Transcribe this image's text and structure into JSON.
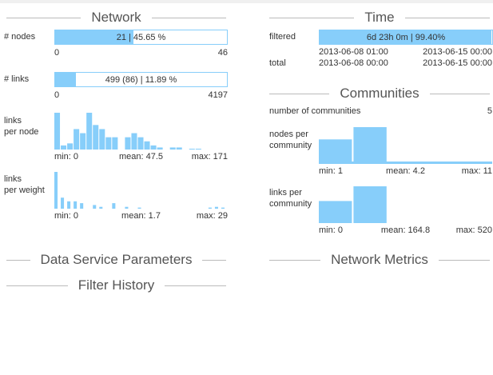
{
  "network": {
    "title": "Network",
    "nodes": {
      "label": "# nodes",
      "value": 21,
      "text": "21 | 45.65 %",
      "min": 0,
      "max": 46
    },
    "links": {
      "label": "# links",
      "value": 499,
      "text": "499 (86) | 11.89 %",
      "min": 0,
      "max": 4197
    },
    "links_per_node": {
      "label": [
        "links",
        "per node"
      ],
      "counts": [
        9,
        1,
        1.5,
        5,
        4,
        9,
        6,
        5,
        3,
        3,
        0,
        3,
        4,
        3,
        2,
        1,
        0.5,
        0,
        0.5,
        0.5,
        0,
        0.2,
        0.2,
        0,
        0,
        0,
        0
      ],
      "stats": [
        "min: 0",
        "mean: 47.5",
        "max: 171"
      ]
    },
    "links_per_weight": {
      "label": [
        "links",
        "per weight"
      ],
      "counts": [
        10,
        3,
        2,
        2,
        1.5,
        0,
        1,
        0.5,
        0,
        1.5,
        0,
        0.5,
        0,
        0.3,
        0,
        0,
        0,
        0,
        0,
        0,
        0,
        0,
        0,
        0,
        0.3,
        0.5,
        0.3
      ],
      "stats": [
        "min: 0",
        "mean: 1.7",
        "max: 29"
      ]
    }
  },
  "time": {
    "title": "Time",
    "filtered": {
      "label": "filtered",
      "value": 99.4,
      "text": "6d 23h 0m | 99.40%",
      "start": "2013-06-08 01:00",
      "end": "2013-06-15 00:00"
    },
    "total": {
      "label": "total",
      "start": "2013-06-08 00:00",
      "end": "2013-06-15 00:00"
    }
  },
  "communities": {
    "title": "Communities",
    "count": {
      "label": "number of communities",
      "value": 5
    },
    "nodes_per_community": {
      "label": [
        "nodes per",
        "community"
      ],
      "counts": [
        2,
        3,
        0,
        0,
        0
      ],
      "stats": [
        "min: 1",
        "mean: 4.2",
        "max: 11"
      ]
    },
    "links_per_community": {
      "label": [
        "links per",
        "community"
      ],
      "counts": [
        3,
        5,
        0,
        0,
        0
      ],
      "stats": [
        "min: 0",
        "mean: 164.8",
        "max: 520"
      ]
    }
  },
  "sections": [
    "Data Service Parameters",
    "Network Metrics",
    "Filter History"
  ]
}
